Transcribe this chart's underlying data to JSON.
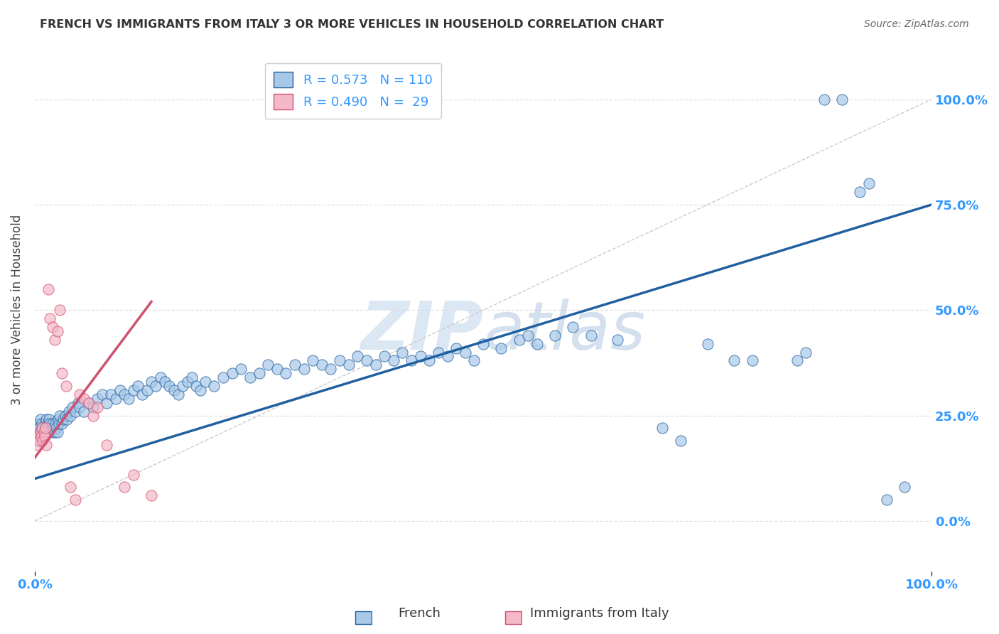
{
  "title": "FRENCH VS IMMIGRANTS FROM ITALY 3 OR MORE VEHICLES IN HOUSEHOLD CORRELATION CHART",
  "source": "Source: ZipAtlas.com",
  "ylabel": "3 or more Vehicles in Household",
  "yticks_labels": [
    "0.0%",
    "25.0%",
    "50.0%",
    "75.0%",
    "100.0%"
  ],
  "ytick_vals": [
    0.0,
    25.0,
    50.0,
    75.0,
    100.0
  ],
  "xlim": [
    0.0,
    100.0
  ],
  "ylim": [
    -12.0,
    112.0
  ],
  "blue_R": 0.573,
  "blue_N": 110,
  "pink_R": 0.49,
  "pink_N": 29,
  "legend_label_blue": "French",
  "legend_label_pink": "Immigrants from Italy",
  "watermark_zip": "ZIP",
  "watermark_atlas": "atlas",
  "blue_color": "#a8c8e8",
  "pink_color": "#f4b8c8",
  "blue_line_color": "#2060a0",
  "pink_line_color": "#d05070",
  "diag_color": "#cccccc",
  "title_color": "#333333",
  "source_color": "#666666",
  "axis_label_color": "#3399ff",
  "grid_color": "#e0e0e0",
  "blue_line_y0": 10.0,
  "blue_line_y1": 75.0,
  "pink_line_x0": 0.0,
  "pink_line_x1": 13.0,
  "pink_line_y0": 15.0,
  "pink_line_y1": 52.0,
  "blue_scatter": [
    [
      0.2,
      22
    ],
    [
      0.3,
      21
    ],
    [
      0.4,
      23
    ],
    [
      0.5,
      22
    ],
    [
      0.6,
      24
    ],
    [
      0.7,
      21
    ],
    [
      0.8,
      23
    ],
    [
      0.9,
      22
    ],
    [
      1.0,
      21
    ],
    [
      1.1,
      23
    ],
    [
      1.2,
      22
    ],
    [
      1.3,
      24
    ],
    [
      1.4,
      23
    ],
    [
      1.5,
      22
    ],
    [
      1.6,
      24
    ],
    [
      1.7,
      23
    ],
    [
      1.8,
      21
    ],
    [
      1.9,
      22
    ],
    [
      2.0,
      23
    ],
    [
      2.1,
      22
    ],
    [
      2.2,
      21
    ],
    [
      2.3,
      23
    ],
    [
      2.4,
      22
    ],
    [
      2.5,
      21
    ],
    [
      2.6,
      24
    ],
    [
      2.7,
      23
    ],
    [
      2.8,
      25
    ],
    [
      3.0,
      23
    ],
    [
      3.2,
      24
    ],
    [
      3.4,
      25
    ],
    [
      3.6,
      24
    ],
    [
      3.8,
      26
    ],
    [
      4.0,
      25
    ],
    [
      4.2,
      27
    ],
    [
      4.5,
      26
    ],
    [
      4.8,
      28
    ],
    [
      5.0,
      27
    ],
    [
      5.5,
      26
    ],
    [
      6.0,
      28
    ],
    [
      6.5,
      27
    ],
    [
      7.0,
      29
    ],
    [
      7.5,
      30
    ],
    [
      8.0,
      28
    ],
    [
      8.5,
      30
    ],
    [
      9.0,
      29
    ],
    [
      9.5,
      31
    ],
    [
      10.0,
      30
    ],
    [
      10.5,
      29
    ],
    [
      11.0,
      31
    ],
    [
      11.5,
      32
    ],
    [
      12.0,
      30
    ],
    [
      12.5,
      31
    ],
    [
      13.0,
      33
    ],
    [
      13.5,
      32
    ],
    [
      14.0,
      34
    ],
    [
      14.5,
      33
    ],
    [
      15.0,
      32
    ],
    [
      15.5,
      31
    ],
    [
      16.0,
      30
    ],
    [
      16.5,
      32
    ],
    [
      17.0,
      33
    ],
    [
      17.5,
      34
    ],
    [
      18.0,
      32
    ],
    [
      18.5,
      31
    ],
    [
      19.0,
      33
    ],
    [
      20.0,
      32
    ],
    [
      21.0,
      34
    ],
    [
      22.0,
      35
    ],
    [
      23.0,
      36
    ],
    [
      24.0,
      34
    ],
    [
      25.0,
      35
    ],
    [
      26.0,
      37
    ],
    [
      27.0,
      36
    ],
    [
      28.0,
      35
    ],
    [
      29.0,
      37
    ],
    [
      30.0,
      36
    ],
    [
      31.0,
      38
    ],
    [
      32.0,
      37
    ],
    [
      33.0,
      36
    ],
    [
      34.0,
      38
    ],
    [
      35.0,
      37
    ],
    [
      36.0,
      39
    ],
    [
      37.0,
      38
    ],
    [
      38.0,
      37
    ],
    [
      39.0,
      39
    ],
    [
      40.0,
      38
    ],
    [
      41.0,
      40
    ],
    [
      42.0,
      38
    ],
    [
      43.0,
      39
    ],
    [
      44.0,
      38
    ],
    [
      45.0,
      40
    ],
    [
      46.0,
      39
    ],
    [
      47.0,
      41
    ],
    [
      48.0,
      40
    ],
    [
      49.0,
      38
    ],
    [
      50.0,
      42
    ],
    [
      52.0,
      41
    ],
    [
      54.0,
      43
    ],
    [
      55.0,
      44
    ],
    [
      56.0,
      42
    ],
    [
      58.0,
      44
    ],
    [
      60.0,
      46
    ],
    [
      62.0,
      44
    ],
    [
      65.0,
      43
    ],
    [
      70.0,
      22
    ],
    [
      72.0,
      19
    ],
    [
      75.0,
      42
    ],
    [
      78.0,
      38
    ],
    [
      80.0,
      38
    ],
    [
      85.0,
      38
    ],
    [
      86.0,
      40
    ],
    [
      88.0,
      100
    ],
    [
      90.0,
      100
    ],
    [
      92.0,
      78
    ],
    [
      93.0,
      80
    ],
    [
      95.0,
      5
    ],
    [
      97.0,
      8
    ]
  ],
  "pink_scatter": [
    [
      0.3,
      18
    ],
    [
      0.4,
      20
    ],
    [
      0.5,
      19
    ],
    [
      0.6,
      21
    ],
    [
      0.7,
      20
    ],
    [
      0.8,
      22
    ],
    [
      0.9,
      19
    ],
    [
      1.0,
      21
    ],
    [
      1.1,
      20
    ],
    [
      1.2,
      22
    ],
    [
      1.3,
      18
    ],
    [
      1.5,
      55
    ],
    [
      1.7,
      48
    ],
    [
      2.0,
      46
    ],
    [
      2.2,
      43
    ],
    [
      2.5,
      45
    ],
    [
      2.8,
      50
    ],
    [
      3.0,
      35
    ],
    [
      3.5,
      32
    ],
    [
      4.0,
      8
    ],
    [
      4.5,
      5
    ],
    [
      5.0,
      30
    ],
    [
      5.5,
      29
    ],
    [
      6.0,
      28
    ],
    [
      6.5,
      25
    ],
    [
      7.0,
      27
    ],
    [
      8.0,
      18
    ],
    [
      10.0,
      8
    ],
    [
      11.0,
      11
    ],
    [
      13.0,
      6
    ]
  ]
}
